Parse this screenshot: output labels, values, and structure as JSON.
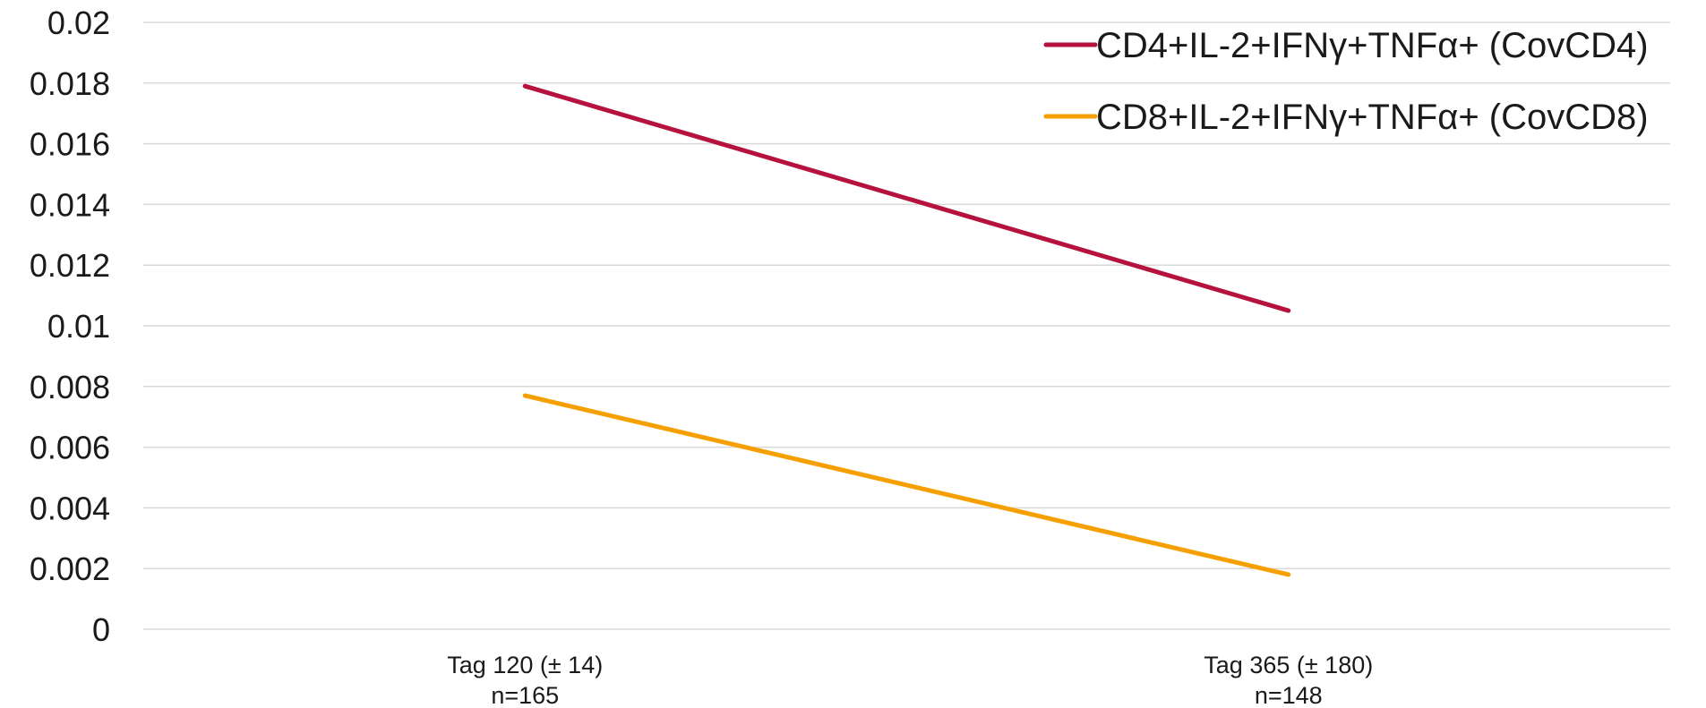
{
  "chart_data": {
    "type": "line",
    "categories": [
      {
        "line1": "Tag 120 (± 14)",
        "line2": "n=165"
      },
      {
        "line1": "Tag 365 (± 180)",
        "line2": "n=148"
      }
    ],
    "series": [
      {
        "name": "CD4+IL-2+IFNγ+TNFα+ (CovCD4)",
        "color": "#b5123e",
        "values": [
          0.0179,
          0.0105
        ]
      },
      {
        "name": "CD8+IL-2+IFNγ+TNFα+ (CovCD8)",
        "color": "#f5a000",
        "values": [
          0.0077,
          0.0018
        ]
      }
    ],
    "yticks": [
      "0",
      "0.002",
      "0.004",
      "0.006",
      "0.008",
      "0.01",
      "0.012",
      "0.014",
      "0.016",
      "0.018",
      "0.02"
    ],
    "ylim": [
      0,
      0.02
    ],
    "grid": true,
    "gridColor": "#d9d9d9",
    "legend": "top-right"
  }
}
